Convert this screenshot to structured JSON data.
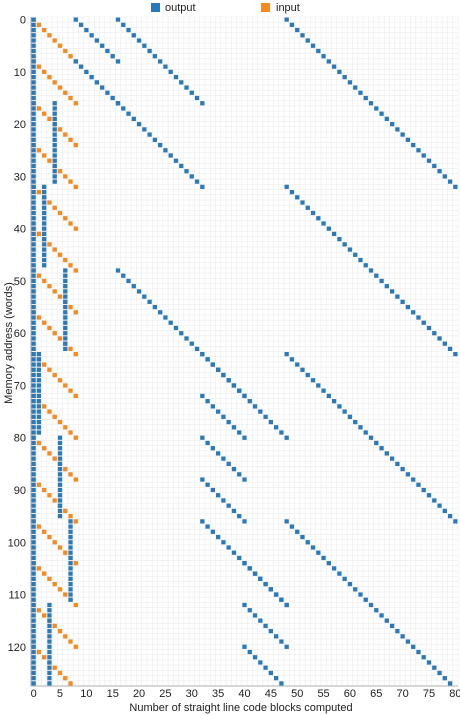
{
  "chart_data": {
    "type": "heatmap",
    "xlabel": "Number of straight line code blocks computed",
    "ylabel": "Memory address (words)",
    "xlim": [
      0,
      80
    ],
    "ylim": [
      0,
      127
    ],
    "x_ticks": [
      "0",
      "5",
      "10",
      "15",
      "20",
      "25",
      "30",
      "35",
      "40",
      "45",
      "50",
      "55",
      "60",
      "65",
      "70",
      "75",
      "80"
    ],
    "y_ticks": [
      "0",
      "10",
      "20",
      "30",
      "40",
      "50",
      "60",
      "70",
      "80",
      "90",
      "100",
      "110",
      "120"
    ],
    "grid": true,
    "legend_position": "top",
    "series": [
      {
        "name": "output",
        "color": "#2a7ab9",
        "segments": [
          {
            "x": [
              0,
              0
            ],
            "y": [
              0,
              127
            ]
          },
          {
            "x": [
              8,
              16
            ],
            "y": [
              0,
              8
            ]
          },
          {
            "x": [
              16,
              32
            ],
            "y": [
              0,
              16
            ]
          },
          {
            "x": [
              48,
              80
            ],
            "y": [
              0,
              32
            ]
          },
          {
            "x": [
              8,
              16
            ],
            "y": [
              8,
              16
            ]
          },
          {
            "x": [
              16,
              32
            ],
            "y": [
              16,
              32
            ]
          },
          {
            "x": [
              4,
              4
            ],
            "y": [
              16,
              31
            ]
          },
          {
            "x": [
              48,
              80
            ],
            "y": [
              32,
              64
            ]
          },
          {
            "x": [
              2,
              2
            ],
            "y": [
              32,
              47
            ]
          },
          {
            "x": [
              16,
              48
            ],
            "y": [
              48,
              80
            ]
          },
          {
            "x": [
              6,
              6
            ],
            "y": [
              48,
              63
            ]
          },
          {
            "x": [
              48,
              80
            ],
            "y": [
              64,
              96
            ]
          },
          {
            "x": [
              1,
              1
            ],
            "y": [
              64,
              79
            ]
          },
          {
            "x": [
              32,
              40
            ],
            "y": [
              64,
              72
            ]
          },
          {
            "x": [
              32,
              40
            ],
            "y": [
              72,
              80
            ]
          },
          {
            "x": [
              5,
              5
            ],
            "y": [
              80,
              95
            ]
          },
          {
            "x": [
              32,
              40
            ],
            "y": [
              80,
              88
            ]
          },
          {
            "x": [
              32,
              40
            ],
            "y": [
              88,
              96
            ]
          },
          {
            "x": [
              7,
              7
            ],
            "y": [
              96,
              111
            ]
          },
          {
            "x": [
              32,
              48
            ],
            "y": [
              96,
              112
            ]
          },
          {
            "x": [
              48,
              80
            ],
            "y": [
              96,
              128
            ]
          },
          {
            "x": [
              40,
              48
            ],
            "y": [
              104,
              112
            ]
          },
          {
            "x": [
              3,
              3
            ],
            "y": [
              112,
              127
            ]
          },
          {
            "x": [
              40,
              48
            ],
            "y": [
              112,
              120
            ]
          },
          {
            "x": [
              40,
              48
            ],
            "y": [
              120,
              128
            ]
          }
        ]
      },
      {
        "name": "input",
        "color": "#f58a1f",
        "segments": [
          {
            "x": [
              0,
              8
            ],
            "y": [
              0,
              8
            ]
          },
          {
            "x": [
              0,
              8
            ],
            "y": [
              8,
              16
            ]
          },
          {
            "x": [
              0,
              8
            ],
            "y": [
              16,
              24
            ]
          },
          {
            "x": [
              0,
              8
            ],
            "y": [
              24,
              32
            ]
          },
          {
            "x": [
              0,
              8
            ],
            "y": [
              32,
              40
            ]
          },
          {
            "x": [
              0,
              8
            ],
            "y": [
              40,
              48
            ]
          },
          {
            "x": [
              0,
              8
            ],
            "y": [
              48,
              56
            ]
          },
          {
            "x": [
              0,
              8
            ],
            "y": [
              56,
              64
            ]
          },
          {
            "x": [
              0,
              8
            ],
            "y": [
              64,
              72
            ]
          },
          {
            "x": [
              0,
              8
            ],
            "y": [
              72,
              80
            ]
          },
          {
            "x": [
              0,
              8
            ],
            "y": [
              80,
              88
            ]
          },
          {
            "x": [
              0,
              8
            ],
            "y": [
              88,
              96
            ]
          },
          {
            "x": [
              0,
              8
            ],
            "y": [
              96,
              104
            ]
          },
          {
            "x": [
              0,
              8
            ],
            "y": [
              104,
              112
            ]
          },
          {
            "x": [
              0,
              8
            ],
            "y": [
              112,
              120
            ]
          },
          {
            "x": [
              0,
              8
            ],
            "y": [
              120,
              128
            ]
          }
        ]
      }
    ]
  }
}
